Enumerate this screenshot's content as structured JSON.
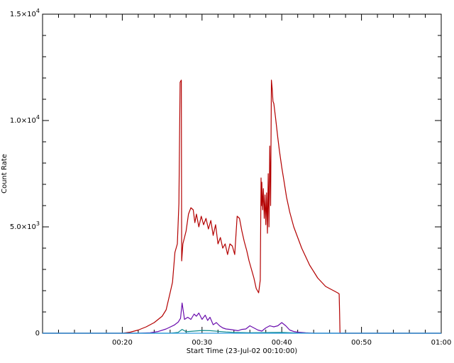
{
  "chart_data": {
    "type": "line",
    "xlabel": "Start Time (23-Jul-02 00:10:00)",
    "ylabel": "Count Rate",
    "x_unit": "minutes past 00:00",
    "xlim": [
      10,
      60
    ],
    "ylim": [
      0,
      15000
    ],
    "x_ticks": [
      {
        "value": 20,
        "label": "00:20"
      },
      {
        "value": 30,
        "label": "00:30"
      },
      {
        "value": 40,
        "label": "00:40"
      },
      {
        "value": 50,
        "label": "00:50"
      },
      {
        "value": 60,
        "label": "01:00"
      }
    ],
    "y_ticks": [
      {
        "value": 0,
        "label": "0",
        "exp": ""
      },
      {
        "value": 5000,
        "label": "5.0×10",
        "exp": "3"
      },
      {
        "value": 10000,
        "label": "1.0×10",
        "exp": "4"
      },
      {
        "value": 15000,
        "label": "1.5×10",
        "exp": "4"
      }
    ],
    "grid": false,
    "series": [
      {
        "color": "#b30000",
        "x": [
          10,
          20.0,
          21.0,
          22.0,
          23.0,
          24.0,
          25.0,
          25.5,
          26.0,
          26.3,
          26.6,
          26.9,
          27.1,
          27.25,
          27.4,
          27.45,
          27.6,
          28.0,
          28.3,
          28.6,
          28.9,
          29.1,
          29.3,
          29.6,
          29.9,
          30.2,
          30.5,
          30.8,
          31.1,
          31.4,
          31.7,
          32.0,
          32.3,
          32.6,
          32.9,
          33.2,
          33.5,
          33.8,
          34.1,
          34.4,
          34.7,
          35.0,
          35.3,
          35.6,
          35.9,
          36.2,
          36.5,
          36.8,
          37.1,
          37.3,
          37.4,
          37.45,
          37.5,
          37.6,
          37.7,
          37.8,
          37.9,
          38.0,
          38.1,
          38.2,
          38.3,
          38.4,
          38.5,
          38.6,
          38.7,
          38.8,
          38.9,
          39.0,
          39.2,
          39.35,
          39.5,
          39.7,
          40.0,
          40.3,
          40.6,
          41.0,
          41.5,
          42.0,
          42.5,
          43.0,
          43.5,
          44.0,
          44.5,
          45.0,
          45.5,
          46.0,
          46.5,
          47.0,
          47.2,
          47.25,
          47.3,
          48.0,
          60
        ],
        "y": [
          0,
          0,
          50,
          150,
          300,
          500,
          800,
          1100,
          1900,
          2400,
          3800,
          4200,
          6100,
          11800,
          11900,
          3400,
          4200,
          4800,
          5600,
          5900,
          5800,
          5200,
          5600,
          5000,
          5500,
          5100,
          5400,
          4900,
          5300,
          4600,
          5100,
          4200,
          4500,
          4000,
          4200,
          3700,
          4200,
          4100,
          3700,
          5500,
          5400,
          4800,
          4300,
          3900,
          3400,
          3000,
          2600,
          2100,
          1900,
          2500,
          7300,
          6000,
          7100,
          5800,
          6800,
          5400,
          6500,
          5100,
          6600,
          4700,
          7500,
          5000,
          8800,
          6000,
          11900,
          11500,
          10900,
          10800,
          10200,
          9700,
          9200,
          8600,
          7800,
          7100,
          6400,
          5700,
          5000,
          4500,
          4000,
          3600,
          3200,
          2900,
          2600,
          2400,
          2200,
          2100,
          2000,
          1900,
          1850,
          1000,
          0,
          0,
          0
        ]
      },
      {
        "color": "#6a0dad",
        "x": [
          10,
          22.0,
          23.5,
          24.5,
          25.5,
          26.5,
          27.0,
          27.3,
          27.5,
          27.8,
          28.2,
          28.6,
          29.0,
          29.3,
          29.6,
          30.0,
          30.4,
          30.7,
          31.0,
          31.4,
          31.8,
          32.2,
          32.6,
          33.0,
          33.5,
          34.0,
          34.5,
          35.0,
          35.5,
          36.0,
          36.5,
          37.0,
          37.5,
          38.0,
          38.5,
          39.0,
          39.5,
          40.0,
          40.5,
          41.0,
          41.5,
          42.0,
          43.0,
          44.0,
          45.0,
          60
        ],
        "y": [
          0,
          0,
          20,
          80,
          200,
          380,
          520,
          700,
          1420,
          650,
          750,
          650,
          900,
          800,
          950,
          650,
          850,
          600,
          750,
          400,
          500,
          350,
          250,
          200,
          180,
          150,
          120,
          180,
          200,
          350,
          250,
          150,
          100,
          250,
          350,
          300,
          350,
          500,
          350,
          150,
          80,
          50,
          20,
          0,
          0,
          0
        ]
      },
      {
        "color": "#0b8a8a",
        "x": [
          10,
          26.0,
          27.0,
          27.5,
          28.0,
          29.0,
          30.0,
          31.0,
          32.0,
          33.0,
          34.0,
          35.0,
          36.0,
          38.0,
          40.0,
          42.0,
          44.0,
          60
        ],
        "y": [
          0,
          0,
          40,
          180,
          70,
          100,
          130,
          120,
          90,
          60,
          40,
          30,
          20,
          30,
          40,
          10,
          0,
          0
        ]
      },
      {
        "color": "#2e9ae0",
        "x": [
          10,
          60
        ],
        "y": [
          0,
          0
        ]
      }
    ]
  }
}
